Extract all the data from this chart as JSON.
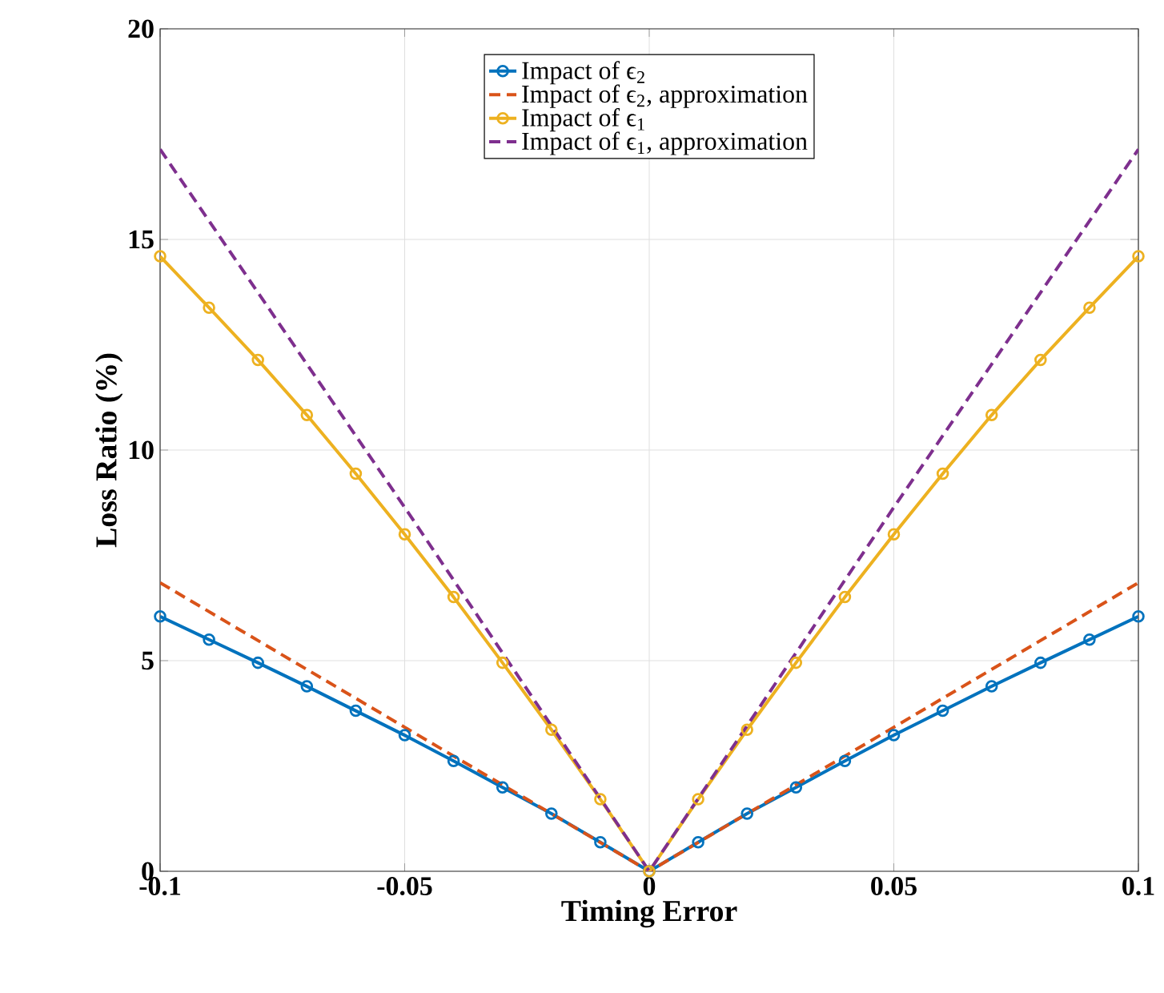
{
  "chart_data": {
    "type": "line",
    "xlabel": "Timing Error",
    "ylabel": "Loss Ratio (%)",
    "xlim": [
      -0.1,
      0.1
    ],
    "ylim": [
      0,
      20
    ],
    "xticks": [
      -0.1,
      -0.05,
      0,
      0.05,
      0.1
    ],
    "yticks": [
      0,
      5,
      10,
      15,
      20
    ],
    "grid": true,
    "legend": "top",
    "series": [
      {
        "name": "Impact of ϵ$_{2}$",
        "color": "#0072bd",
        "marker": "circle",
        "line_style": "solid",
        "x": [
          -0.1,
          -0.09,
          -0.08,
          -0.07,
          -0.06,
          -0.05,
          -0.04,
          -0.03,
          -0.02,
          -0.01,
          0,
          0.01,
          0.02,
          0.03,
          0.04,
          0.05,
          0.06,
          0.07,
          0.08,
          0.09,
          0.1
        ],
        "values": [
          6.05,
          5.5,
          4.95,
          4.39,
          3.81,
          3.23,
          2.62,
          1.99,
          1.37,
          0.69,
          0,
          0.69,
          1.37,
          1.99,
          2.62,
          3.23,
          3.81,
          4.39,
          4.95,
          5.5,
          6.05
        ]
      },
      {
        "name": "Impact of ϵ$_{2}$, approximation",
        "color": "#d95319",
        "marker": "none",
        "line_style": "dashed",
        "x": [
          -0.1,
          -0.05,
          0,
          0.05,
          0.1
        ],
        "values": [
          6.85,
          3.42,
          0,
          3.42,
          6.85
        ]
      },
      {
        "name": "Impact of ϵ$_{1}$",
        "color": "#edb120",
        "marker": "circle",
        "line_style": "solid",
        "x": [
          -0.1,
          -0.09,
          -0.08,
          -0.07,
          -0.06,
          -0.05,
          -0.04,
          -0.03,
          -0.02,
          -0.01,
          0,
          0.01,
          0.02,
          0.03,
          0.04,
          0.05,
          0.06,
          0.07,
          0.08,
          0.09,
          0.1
        ],
        "values": [
          14.6,
          13.38,
          12.14,
          10.83,
          9.44,
          8.0,
          6.51,
          4.95,
          3.36,
          1.71,
          0,
          1.71,
          3.36,
          4.95,
          6.51,
          8.0,
          9.44,
          10.83,
          12.14,
          13.38,
          14.6
        ]
      },
      {
        "name": "Impact of ϵ$_{1}$, approximation",
        "color": "#7e2f8e",
        "marker": "none",
        "line_style": "dashed",
        "x": [
          -0.1,
          -0.05,
          0,
          0.05,
          0.1
        ],
        "values": [
          17.14,
          8.64,
          0,
          8.64,
          17.14
        ]
      }
    ]
  }
}
